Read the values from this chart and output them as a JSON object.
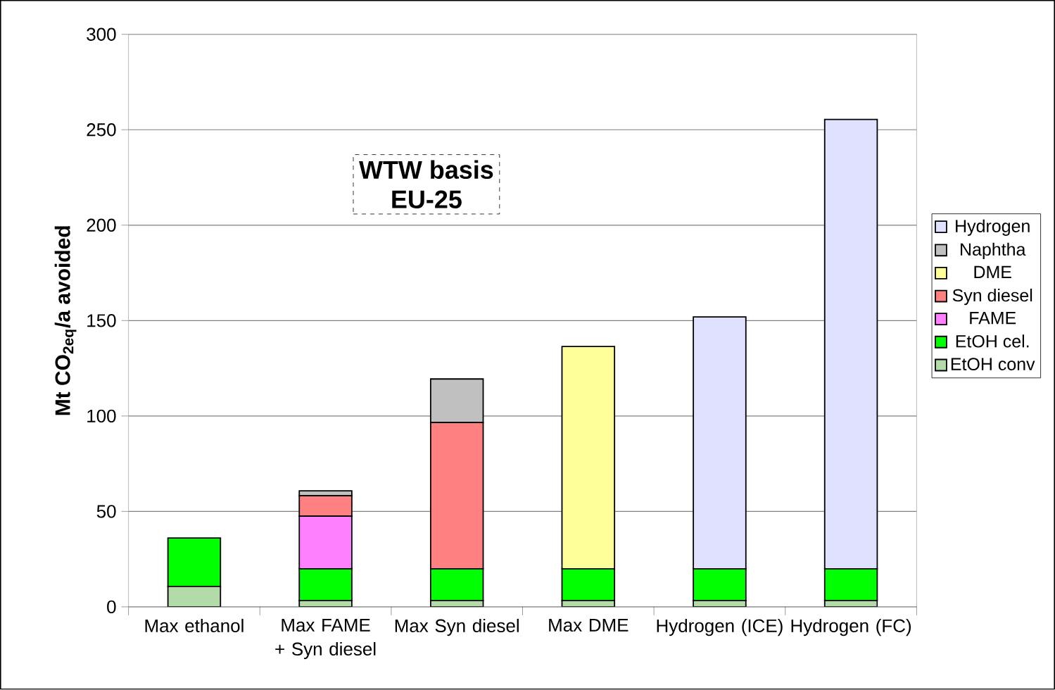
{
  "chart_data": {
    "type": "bar",
    "stacked": true,
    "ylabel": "Mt CO$_{2eq}$/a avoided",
    "categories": [
      "Max ethanol",
      "Max FAME + Syn diesel",
      "Max Syn diesel",
      "Max DME",
      "Hydrogen (ICE)",
      "Hydrogen (FC)"
    ],
    "series": [
      {
        "name": "EtOH conv",
        "color": "#b3dba8",
        "values": [
          10.7,
          3.3,
          3.3,
          3.3,
          3.3,
          3.3
        ]
      },
      {
        "name": "EtOH cel.",
        "color": "#00ff00",
        "values": [
          25.4,
          16.6,
          16.6,
          16.6,
          16.6,
          16.6
        ]
      },
      {
        "name": "FAME",
        "color": "#ff80ff",
        "values": [
          null,
          27.6,
          null,
          null,
          null,
          null
        ]
      },
      {
        "name": "Syn diesel",
        "color": "#ff8080",
        "values": [
          null,
          10.7,
          76.7,
          null,
          null,
          null
        ]
      },
      {
        "name": "DME",
        "color": "#ffff99",
        "values": [
          null,
          null,
          null,
          116.5,
          null,
          null
        ]
      },
      {
        "name": "Naphtha",
        "color": "#c0c0c0",
        "values": [
          null,
          2.6,
          22.8,
          null,
          null,
          null
        ]
      },
      {
        "name": "Hydrogen",
        "color": "#e0e0ff",
        "values": [
          null,
          null,
          null,
          null,
          132.0,
          235.5
        ]
      }
    ],
    "ylim": [
      0,
      300
    ],
    "yticks": [
      0,
      50,
      100,
      150,
      200,
      250,
      300
    ],
    "grid": "y",
    "legend": "right",
    "annotations": [
      "WTW basis",
      "EU-25"
    ]
  }
}
